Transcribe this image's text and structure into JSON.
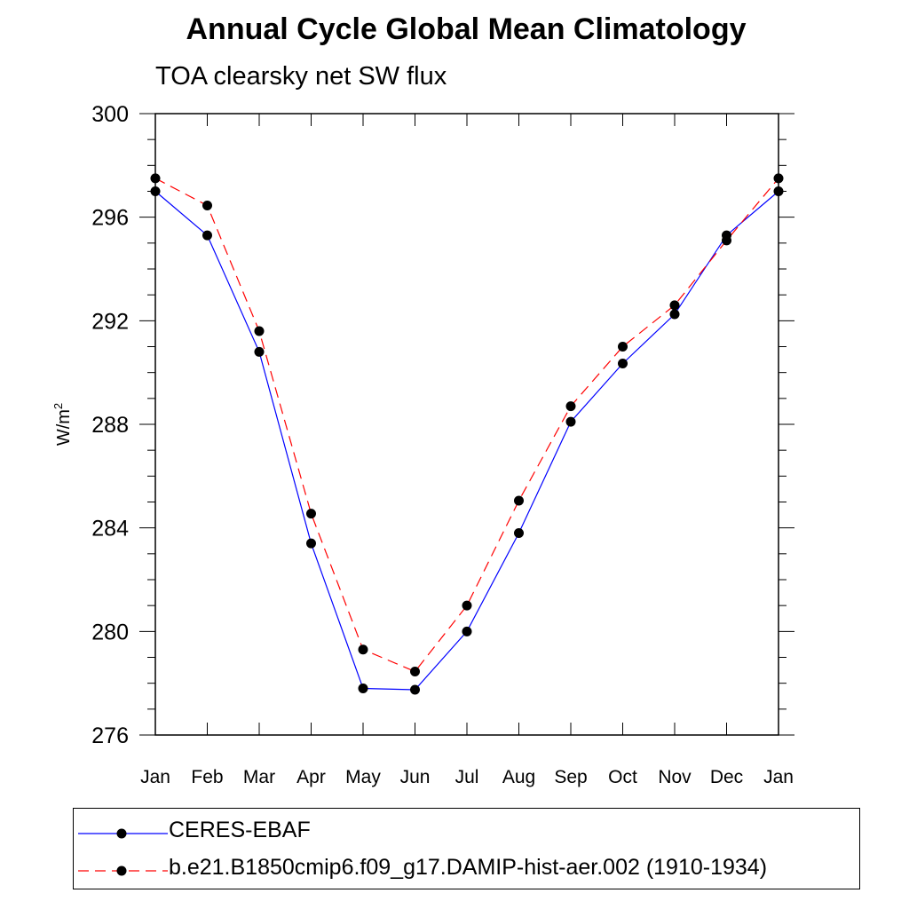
{
  "chart_data": {
    "type": "line",
    "title": "Annual Cycle Global Mean Climatology",
    "subtitle": "TOA clearsky net SW flux",
    "ylabel_base": "W/m",
    "ylabel_sup": "2",
    "categories": [
      "Jan",
      "Feb",
      "Mar",
      "Apr",
      "May",
      "Jun",
      "Jul",
      "Aug",
      "Sep",
      "Oct",
      "Nov",
      "Dec",
      "Jan"
    ],
    "ylim": [
      276,
      300
    ],
    "yticks": [
      276,
      280,
      284,
      288,
      292,
      296,
      300
    ],
    "series": [
      {
        "name": "CERES-EBAF",
        "color": "#0000ff",
        "dash": "solid",
        "values": [
          297.0,
          295.3,
          290.8,
          283.4,
          277.8,
          277.75,
          280.0,
          283.8,
          288.1,
          290.35,
          292.25,
          295.3,
          297.0
        ]
      },
      {
        "name": "b.e21.B1850cmip6.f09_g17.DAMIP-hist-aer.002 (1910-1934)",
        "color": "#ff0000",
        "dash": "dashed",
        "values": [
          297.5,
          296.45,
          291.6,
          284.55,
          279.3,
          278.45,
          281.0,
          285.05,
          288.7,
          291.0,
          292.6,
          295.1,
          297.5
        ]
      }
    ]
  }
}
